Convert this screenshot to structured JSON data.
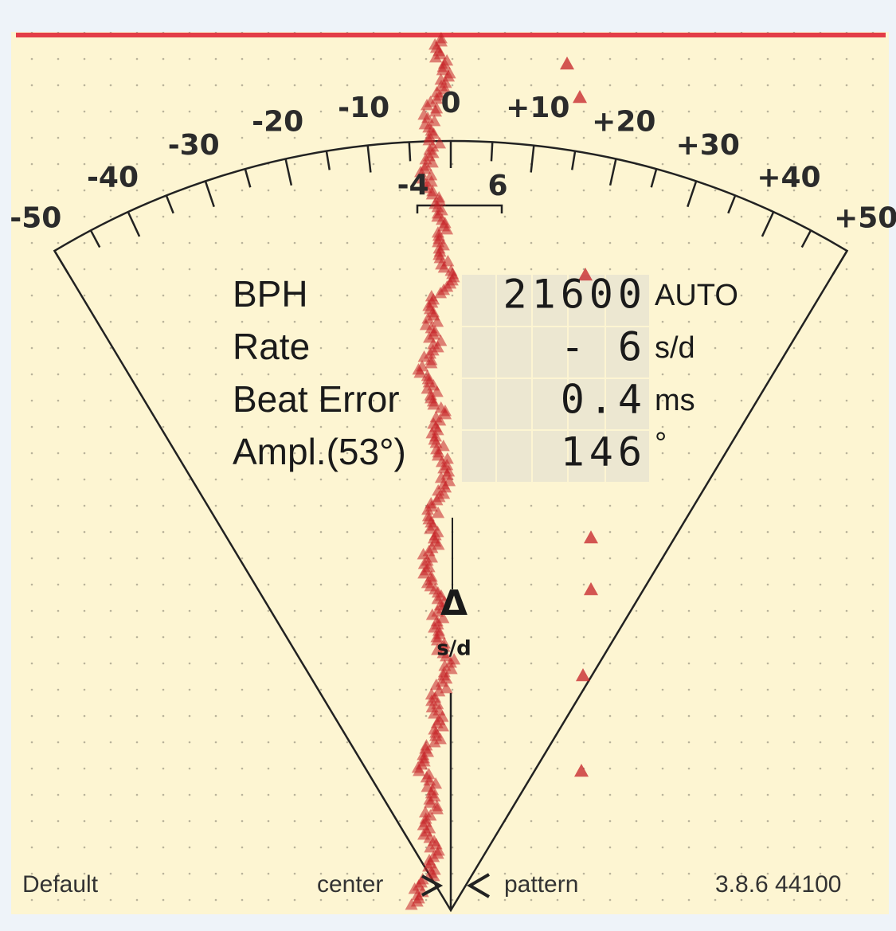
{
  "scale": {
    "labels": [
      "-50",
      "-40",
      "-30",
      "-20",
      "-10",
      "0",
      "+10",
      "+20",
      "+30",
      "+40",
      "+50"
    ],
    "inner_labels": [
      "-4",
      "6"
    ]
  },
  "readout": {
    "rows": [
      {
        "label": "BPH",
        "value": "21600",
        "unit": "AUTO"
      },
      {
        "label": "Rate",
        "value": "- 6",
        "unit": "s/d"
      },
      {
        "label": "Beat Error",
        "value": "0.4",
        "unit": "ms"
      },
      {
        "label": "Ampl.(53°)",
        "value": "146",
        "unit": "°"
      }
    ]
  },
  "trace_axis": {
    "symbol": "Δ",
    "unit": "s/d"
  },
  "footer": {
    "profile": "Default",
    "center": "center",
    "pattern": "pattern",
    "version": "3.8.6 44100"
  }
}
